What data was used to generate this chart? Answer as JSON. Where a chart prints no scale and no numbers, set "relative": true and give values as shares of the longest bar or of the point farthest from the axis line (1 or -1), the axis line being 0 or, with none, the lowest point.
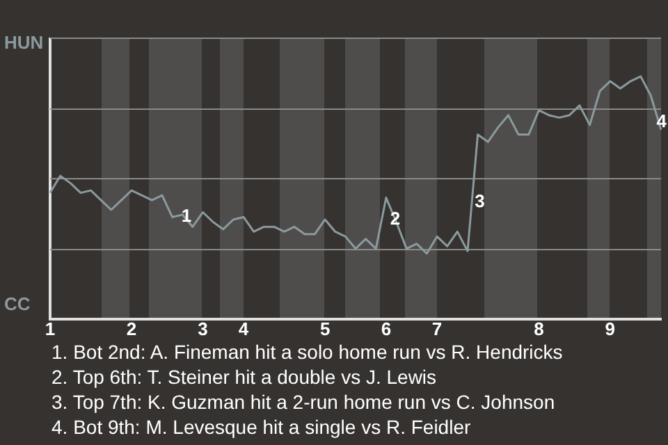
{
  "chart_data": {
    "type": "line",
    "categories": [
      "1",
      null,
      null,
      null,
      null,
      null,
      null,
      null,
      "2",
      null,
      null,
      null,
      null,
      null,
      null,
      "3",
      null,
      null,
      null,
      "4",
      null,
      null,
      null,
      null,
      null,
      null,
      null,
      "5",
      null,
      null,
      null,
      null,
      null,
      "6",
      null,
      null,
      null,
      null,
      "7",
      null,
      null,
      null,
      null,
      null,
      null,
      null,
      null,
      null,
      "8",
      null,
      null,
      null,
      null,
      null,
      null,
      "9",
      null,
      null,
      null,
      null,
      null
    ],
    "values": [
      0.52,
      0.59,
      0.56,
      0.52,
      0.53,
      0.49,
      0.45,
      0.49,
      0.53,
      0.51,
      0.49,
      0.51,
      0.42,
      0.43,
      0.38,
      0.44,
      0.4,
      0.37,
      0.41,
      0.42,
      0.36,
      0.38,
      0.38,
      0.36,
      0.38,
      0.35,
      0.35,
      0.41,
      0.36,
      0.34,
      0.29,
      0.33,
      0.29,
      0.5,
      0.4,
      0.29,
      0.31,
      0.27,
      0.34,
      0.3,
      0.36,
      0.28,
      0.76,
      0.73,
      0.79,
      0.84,
      0.76,
      0.76,
      0.86,
      0.84,
      0.83,
      0.84,
      0.88,
      0.8,
      0.94,
      0.98,
      0.95,
      0.98,
      1,
      0.92,
      0.78
    ],
    "color": "#8b9a9e",
    "relative": true,
    "ref_lines": [
      {
        "axis": "y",
        "value": 0.29,
        "color": "#8a8a88"
      },
      {
        "axis": "y",
        "value": 0.58,
        "color": "#8a8a88"
      },
      {
        "axis": "y",
        "value": 0.87,
        "color": "#8a8a88"
      },
      {
        "axis": "y",
        "value": 1.16,
        "color": "#8a8a88"
      }
    ],
    "annotations": [
      "HUN",
      "CC",
      {
        "text": "1",
        "y": 0.42
      },
      {
        "text": "2",
        "y": 0.41
      },
      {
        "text": "3",
        "y": 0.48
      },
      {
        "text": "4",
        "y": 0.81
      },
      "1. Bot 2nd: A. Fineman hit a solo home run vs R. Hendricks",
      "2. Top 6th: T. Steiner hit a double vs J. Lewis",
      "3. Top 7th: K. Guzman hit a 2-run home run vs C. Johnson",
      "4. Bot 9th: M. Levesque hit a single vs R. Feidler"
    ]
  }
}
